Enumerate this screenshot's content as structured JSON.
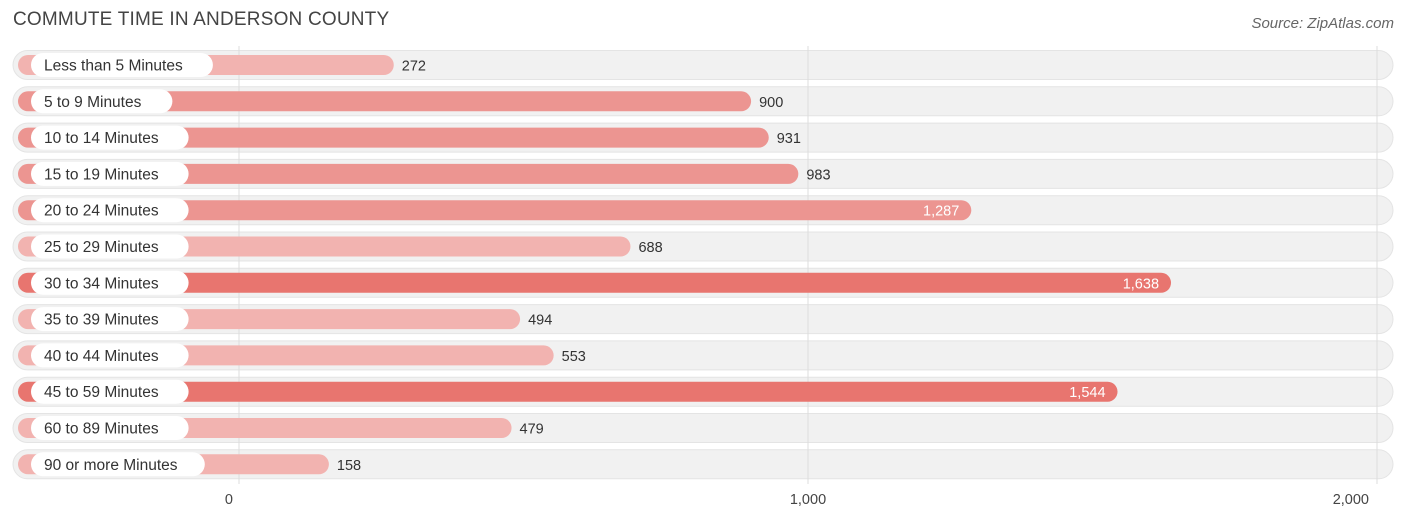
{
  "title": "COMMUTE TIME IN ANDERSON COUNTY",
  "source": "Source: ZipAtlas.com",
  "chart_data": {
    "type": "bar",
    "orientation": "horizontal",
    "title": "COMMUTE TIME IN ANDERSON COUNTY",
    "categories": [
      "Less than 5 Minutes",
      "5 to 9 Minutes",
      "10 to 14 Minutes",
      "15 to 19 Minutes",
      "20 to 24 Minutes",
      "25 to 29 Minutes",
      "30 to 34 Minutes",
      "35 to 39 Minutes",
      "40 to 44 Minutes",
      "45 to 59 Minutes",
      "60 to 89 Minutes",
      "90 or more Minutes"
    ],
    "values": [
      272,
      900,
      931,
      983,
      1287,
      688,
      1638,
      494,
      553,
      1544,
      479,
      158
    ],
    "value_labels": [
      "272",
      "900",
      "931",
      "983",
      "1,287",
      "688",
      "1,638",
      "494",
      "553",
      "1,544",
      "479",
      "158"
    ],
    "xlim": [
      0,
      2000
    ],
    "xticks": [
      0,
      1000,
      2000
    ],
    "xtick_labels": [
      "0",
      "1,000",
      "2,000"
    ],
    "xlabel": "",
    "ylabel": "",
    "grid": true,
    "colors": {
      "low": "#f2b3b0",
      "mid": "#ec9591",
      "high": "#e8756f",
      "track": "#f1f1f1",
      "grid": "#dddddd"
    }
  }
}
